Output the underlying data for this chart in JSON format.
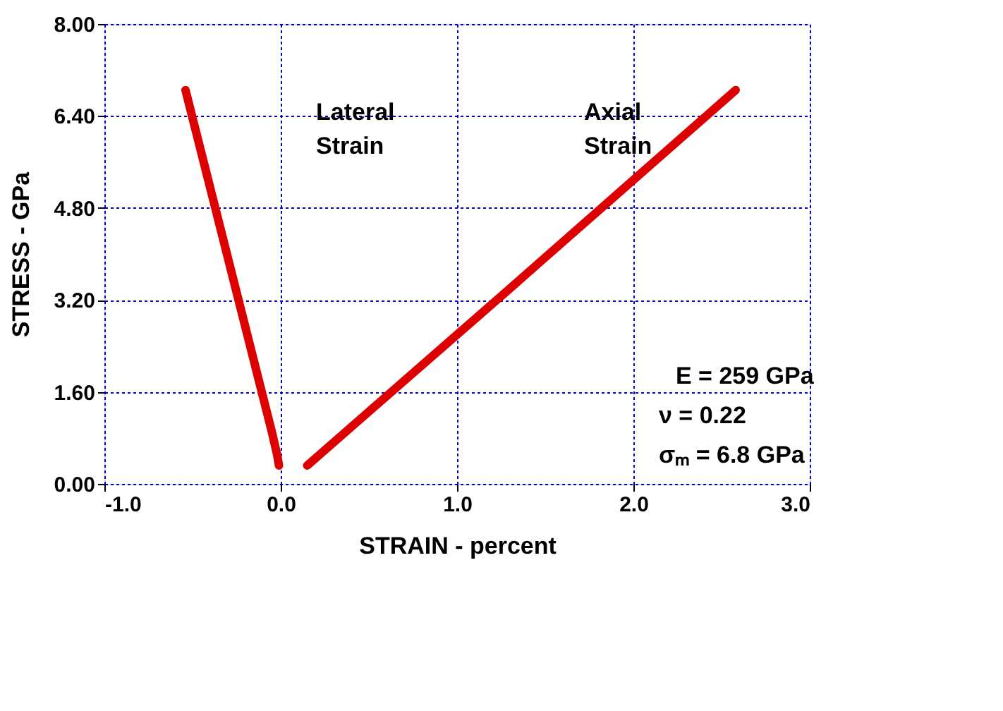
{
  "chart_data": {
    "type": "line",
    "xlabel": "STRAIN - percent",
    "ylabel": "STRESS - GPa",
    "series": [
      {
        "color": "#dd0000",
        "x": [
          -0.54,
          -0.05,
          -0.02,
          -0.01
        ],
        "values": [
          6.85,
          0.9,
          0.5,
          0.32
        ]
      },
      {
        "color": "#dd0000",
        "x": [
          0.15,
          1.3,
          2.58
        ],
        "values": [
          0.32,
          3.4,
          6.85
        ]
      }
    ],
    "xlim": [
      -1,
      3
    ],
    "xticks": [
      {
        "value": -1,
        "label": "-1.0"
      },
      {
        "value": 0,
        "label": "0.0"
      },
      {
        "value": 1,
        "label": "1.0"
      },
      {
        "value": 2,
        "label": "2.0"
      },
      {
        "value": 3,
        "label": "3.0"
      }
    ],
    "ylim": [
      0,
      8
    ],
    "yticks": [
      {
        "value": 0,
        "label": "0.00"
      },
      {
        "value": 1.6,
        "label": "1.60"
      },
      {
        "value": 3.2,
        "label": "3.20"
      },
      {
        "value": 4.8,
        "label": "4.80"
      },
      {
        "value": 6.4,
        "label": "6.40"
      },
      {
        "value": 8,
        "label": "8.00"
      }
    ],
    "grid": true,
    "marker": "none",
    "line_style": "solid",
    "annotations": [
      "Lateral Strain",
      "Axial Strain",
      "E = 259 GPa",
      "ν = 0.22",
      "σₘ = 6.8 GPa"
    ]
  }
}
